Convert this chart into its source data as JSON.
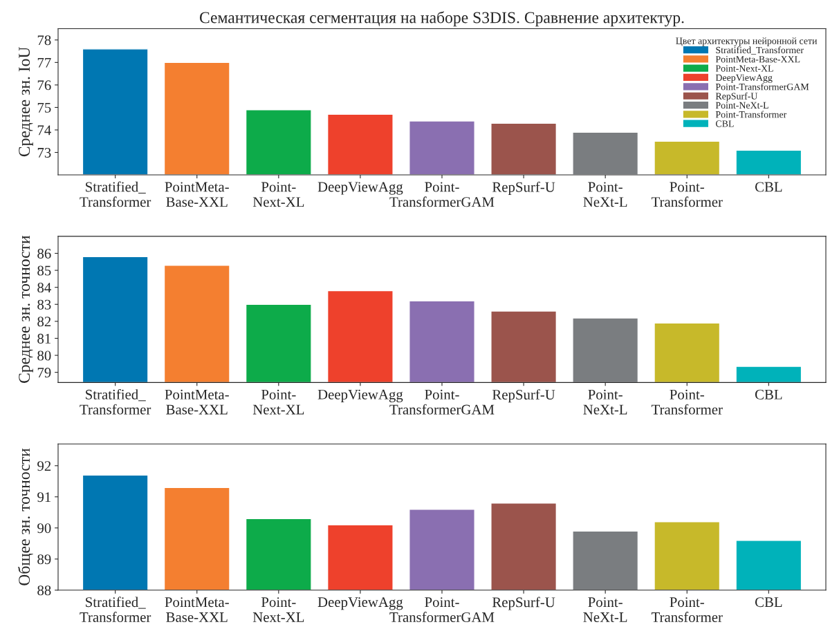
{
  "chart_data": [
    {
      "type": "bar",
      "title": "Семантическая сегментация на наборе S3DIS. Сравнение архитектур.",
      "ylabel": "Среднее зн. IoU",
      "legend_title": "Цвет архитектуры нейронной сети",
      "legend": "top right",
      "categories": [
        "Stratified_\nTransformer",
        "PointMeta-\nBase-XXL",
        "Point-\nNext-XL",
        "DeepViewAgg",
        "Point-\nTransformerGAM",
        "RepSurf-U",
        "Point-\nNeXt-L",
        "Point-\nTransformer",
        "CBL"
      ],
      "series": [
        {
          "name": "Stratified_Transformer",
          "color": "#0077b2",
          "values": [
            77.6,
            null,
            null,
            null,
            null,
            null,
            null,
            null,
            null
          ]
        },
        {
          "name": "PointMeta-Base-XXL",
          "color": "#f47f30",
          "values": [
            null,
            77.0,
            null,
            null,
            null,
            null,
            null,
            null,
            null
          ]
        },
        {
          "name": "Point-Next-XL",
          "color": "#0dab4a",
          "values": [
            null,
            null,
            74.9,
            null,
            null,
            null,
            null,
            null,
            null
          ]
        },
        {
          "name": "DeepViewAgg",
          "color": "#ee412c",
          "values": [
            null,
            null,
            null,
            74.7,
            null,
            null,
            null,
            null,
            null
          ]
        },
        {
          "name": "Point-TransformerGAM",
          "color": "#8a6fb1",
          "values": [
            null,
            null,
            null,
            null,
            74.4,
            null,
            null,
            null,
            null
          ]
        },
        {
          "name": "RepSurf-U",
          "color": "#9b544c",
          "values": [
            null,
            null,
            null,
            null,
            null,
            74.3,
            null,
            null,
            null
          ]
        },
        {
          "name": "Point-NeXt-L",
          "color": "#7a7d80",
          "values": [
            null,
            null,
            null,
            null,
            null,
            null,
            73.9,
            null,
            null
          ]
        },
        {
          "name": "Point-Transformer",
          "color": "#c7b92a",
          "values": [
            null,
            null,
            null,
            null,
            null,
            null,
            null,
            73.5,
            null
          ]
        },
        {
          "name": "CBL",
          "color": "#00b2ba",
          "values": [
            null,
            null,
            null,
            null,
            null,
            null,
            null,
            null,
            73.1
          ]
        }
      ],
      "ylim": [
        72.0,
        78.5
      ],
      "yticks": [
        73,
        74,
        75,
        76,
        77,
        78
      ]
    },
    {
      "type": "bar",
      "ylabel": "Среднее зн. точности",
      "categories": [
        "Stratified_\nTransformer",
        "PointMeta-\nBase-XXL",
        "Point-\nNext-XL",
        "DeepViewAgg",
        "Point-\nTransformerGAM",
        "RepSurf-U",
        "Point-\nNeXt-L",
        "Point-\nTransformer",
        "CBL"
      ],
      "values": [
        85.8,
        85.3,
        83.0,
        83.8,
        83.2,
        82.6,
        82.2,
        81.9,
        79.35
      ],
      "colors": [
        "#0077b2",
        "#f47f30",
        "#0dab4a",
        "#ee412c",
        "#8a6fb1",
        "#9b544c",
        "#7a7d80",
        "#c7b92a",
        "#00b2ba"
      ],
      "ylim": [
        78.4,
        87.0
      ],
      "yticks": [
        79,
        80,
        81,
        82,
        83,
        84,
        85,
        86
      ]
    },
    {
      "type": "bar",
      "ylabel": "Общее зн. точности",
      "categories": [
        "Stratified_\nTransformer",
        "PointMeta-\nBase-XXL",
        "Point-\nNext-XL",
        "DeepViewAgg",
        "Point-\nTransformerGAM",
        "RepSurf-U",
        "Point-\nNeXt-L",
        "Point-\nTransformer",
        "CBL"
      ],
      "values": [
        91.7,
        91.3,
        90.3,
        90.1,
        90.6,
        90.8,
        89.9,
        90.2,
        89.6
      ],
      "colors": [
        "#0077b2",
        "#f47f30",
        "#0dab4a",
        "#ee412c",
        "#8a6fb1",
        "#9b544c",
        "#7a7d80",
        "#c7b92a",
        "#00b2ba"
      ],
      "ylim": [
        88,
        92.7
      ],
      "yticks": [
        88,
        89,
        90,
        91,
        92
      ]
    }
  ]
}
